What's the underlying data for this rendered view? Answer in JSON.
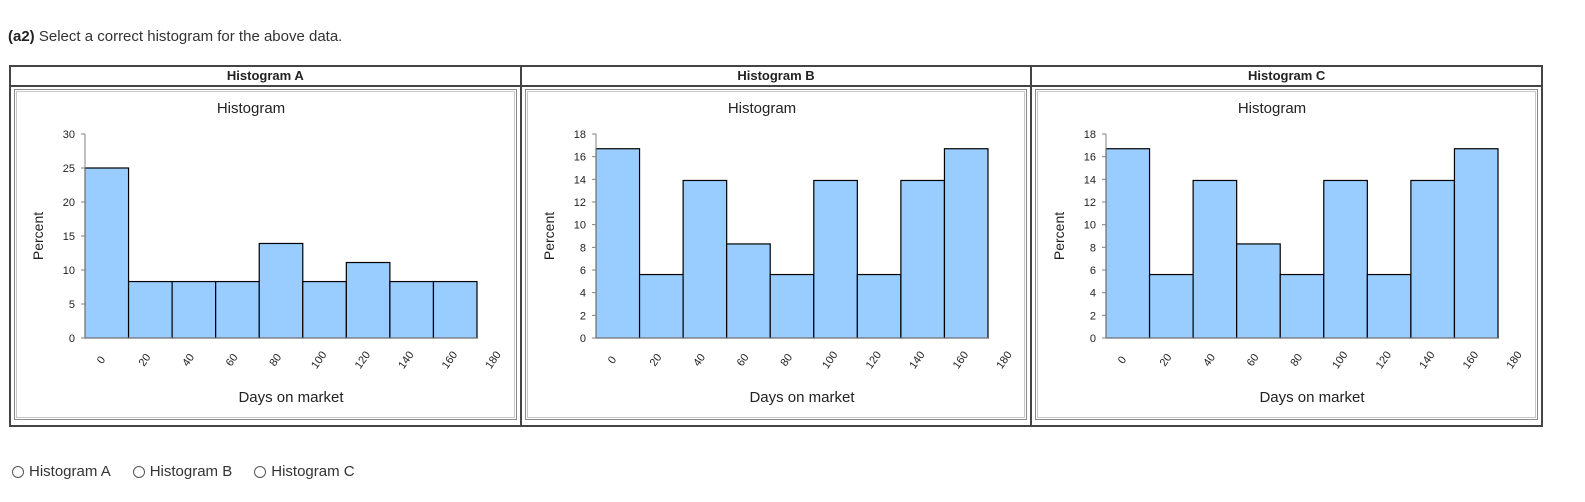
{
  "question": {
    "label": "(a2)",
    "text": "Select a correct histogram for the above data."
  },
  "colors": {
    "bar_fill": "#99ccff",
    "bar_stroke": "#000000",
    "axis": "#808080"
  },
  "chart_data": [
    {
      "header": "Histogram A",
      "type": "bar",
      "title": "Histogram",
      "xlabel": "Days on market",
      "ylabel": "Percent",
      "x_ticks": [
        "0",
        "20",
        "40",
        "60",
        "80",
        "100",
        "120",
        "140",
        "160",
        "180"
      ],
      "y_ticks": [
        "0",
        "5",
        "10",
        "15",
        "20",
        "25",
        "30"
      ],
      "ylim": [
        0,
        30
      ],
      "bins": [
        [
          0,
          20
        ],
        [
          20,
          40
        ],
        [
          40,
          60
        ],
        [
          60,
          80
        ],
        [
          80,
          100
        ],
        [
          100,
          120
        ],
        [
          120,
          140
        ],
        [
          140,
          160
        ],
        [
          160,
          180
        ]
      ],
      "values": [
        25,
        8.3,
        8.3,
        8.3,
        13.9,
        8.3,
        11.1,
        8.3,
        8.3
      ],
      "grid": false
    },
    {
      "header": "Histogram B",
      "type": "bar",
      "title": "Histogram",
      "xlabel": "Days on market",
      "ylabel": "Percent",
      "x_ticks": [
        "0",
        "20",
        "40",
        "60",
        "80",
        "100",
        "120",
        "140",
        "160",
        "180"
      ],
      "y_ticks": [
        "0",
        "2",
        "4",
        "6",
        "8",
        "10",
        "12",
        "14",
        "16",
        "18"
      ],
      "ylim": [
        0,
        18
      ],
      "bins": [
        [
          0,
          20
        ],
        [
          20,
          40
        ],
        [
          40,
          60
        ],
        [
          60,
          80
        ],
        [
          80,
          100
        ],
        [
          100,
          120
        ],
        [
          120,
          140
        ],
        [
          140,
          160
        ],
        [
          160,
          180
        ]
      ],
      "values": [
        16.7,
        5.6,
        13.9,
        8.3,
        5.6,
        13.9,
        5.6,
        13.9,
        16.7
      ],
      "grid": false
    },
    {
      "header": "Histogram C",
      "type": "bar",
      "title": "Histogram",
      "xlabel": "Days on market",
      "ylabel": "Percent",
      "x_ticks": [
        "0",
        "20",
        "40",
        "60",
        "80",
        "100",
        "120",
        "140",
        "160",
        "180"
      ],
      "y_ticks": [
        "0",
        "2",
        "4",
        "6",
        "8",
        "10",
        "12",
        "14",
        "16",
        "18"
      ],
      "ylim": [
        0,
        18
      ],
      "bins": [
        [
          0,
          20
        ],
        [
          20,
          40
        ],
        [
          40,
          60
        ],
        [
          60,
          80
        ],
        [
          80,
          100
        ],
        [
          100,
          120
        ],
        [
          120,
          140
        ],
        [
          140,
          160
        ],
        [
          160,
          180
        ]
      ],
      "values": [
        16.7,
        5.6,
        13.9,
        8.3,
        5.6,
        13.9,
        5.6,
        13.9,
        16.7
      ],
      "grid": false
    }
  ],
  "options": [
    {
      "label": "Histogram A"
    },
    {
      "label": "Histogram B"
    },
    {
      "label": "Histogram C"
    }
  ]
}
